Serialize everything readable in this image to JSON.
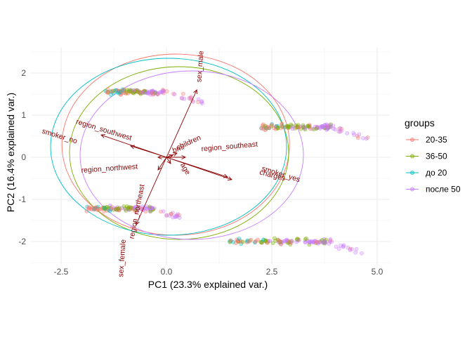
{
  "chart_data": {
    "type": "scatter",
    "subtype": "pca-biplot",
    "xlabel": "PC1 (23.3% explained var.)",
    "ylabel": "PC2 (16.4% explained var.)",
    "xlim": [
      -3.2,
      5.3
    ],
    "ylim": [
      -2.55,
      2.6
    ],
    "x_ticks": [
      -2.5,
      0.0,
      2.5,
      5.0
    ],
    "x_tick_labels": [
      "-2.5",
      "0.0",
      "2.5",
      "5.0"
    ],
    "y_ticks": [
      -2,
      -1,
      0,
      1,
      2
    ],
    "y_tick_labels": [
      "-2",
      "-1",
      "0",
      "1",
      "2"
    ],
    "grid": true,
    "legend": {
      "title": "groups",
      "position": "right",
      "entries": [
        {
          "label": "20-35",
          "color": "#F8766D"
        },
        {
          "label": "36-50",
          "color": "#7CAE00"
        },
        {
          "label": "до 20",
          "color": "#00BFC4"
        },
        {
          "label": "после 50",
          "color": "#C77CFF"
        }
      ]
    },
    "clusters": [
      {
        "x_range": [
          -1.45,
          -0.05
        ],
        "y_center": 1.55,
        "y_spread": 0.09,
        "tail": [
          0.0,
          0.85
        ],
        "tail_y": 1.3
      },
      {
        "x_range": [
          2.25,
          3.95
        ],
        "y_center": 0.72,
        "y_spread": 0.09,
        "tail": [
          3.95,
          4.9
        ],
        "tail_y": 0.4
      },
      {
        "x_range": [
          -1.9,
          -0.3
        ],
        "y_center": -1.22,
        "y_spread": 0.09,
        "tail": [
          -0.3,
          0.4
        ],
        "tail_y": -1.45
      },
      {
        "x_range": [
          1.5,
          3.8
        ],
        "y_center": -2.0,
        "y_spread": 0.09,
        "tail": [
          3.8,
          4.7
        ],
        "tail_y": -2.3
      }
    ],
    "ellipses": [
      {
        "group": "20-35",
        "cx": 0.22,
        "cy": 0.3,
        "rx": 2.7,
        "ry": 2.15
      },
      {
        "group": "36-50",
        "cx": 0.3,
        "cy": 0.1,
        "rx": 2.6,
        "ry": 2.05
      },
      {
        "group": "до 20",
        "cx": 0.05,
        "cy": 0.25,
        "rx": 2.8,
        "ry": 2.1
      },
      {
        "group": "после 50",
        "cx": 0.6,
        "cy": 0.05,
        "rx": 2.65,
        "ry": 2.0
      }
    ],
    "arrows": [
      {
        "label": "sex_male",
        "x": 0.72,
        "y": 1.6,
        "label_x": 0.85,
        "label_y": 2.15,
        "rotate": -86
      },
      {
        "label": "sex_female",
        "x": -0.72,
        "y": -1.6,
        "label_x": -1.0,
        "label_y": -2.4,
        "rotate": -86
      },
      {
        "label": "smoker_no",
        "x": -1.55,
        "y": 0.53,
        "label_x": -2.55,
        "label_y": 0.45,
        "rotate": 17
      },
      {
        "label": "smoker_yes",
        "x": 1.55,
        "y": -0.53,
        "label_x": 2.7,
        "label_y": -0.45,
        "rotate": 17
      },
      {
        "label": "charges",
        "x": 1.45,
        "y": -0.47,
        "label_x": 2.5,
        "label_y": -0.48,
        "rotate": 14
      },
      {
        "label": "region_southwest",
        "x": -0.85,
        "y": 0.27,
        "label_x": -1.5,
        "label_y": 0.6,
        "rotate": 17
      },
      {
        "label": "region_southeast",
        "x": 0.45,
        "y": 0.0,
        "label_x": 1.5,
        "label_y": 0.2,
        "rotate": -5
      },
      {
        "label": "region_northwest",
        "x": -0.2,
        "y": 0.0,
        "label_x": -1.35,
        "label_y": -0.32,
        "rotate": -4
      },
      {
        "label": "region_northeast",
        "x": -0.2,
        "y": -0.3,
        "label_x": -0.65,
        "label_y": -1.3,
        "rotate": -79
      },
      {
        "label": "children",
        "x": 0.25,
        "y": 0.1,
        "label_x": 0.55,
        "label_y": 0.3,
        "rotate": -25
      },
      {
        "label": "bmi",
        "x": 0.15,
        "y": 0.05,
        "label_x": 0.3,
        "label_y": 0.15,
        "rotate": -20
      },
      {
        "label": "age",
        "x": 0.1,
        "y": -0.15,
        "label_x": 0.4,
        "label_y": -0.3,
        "rotate": 60
      }
    ]
  }
}
